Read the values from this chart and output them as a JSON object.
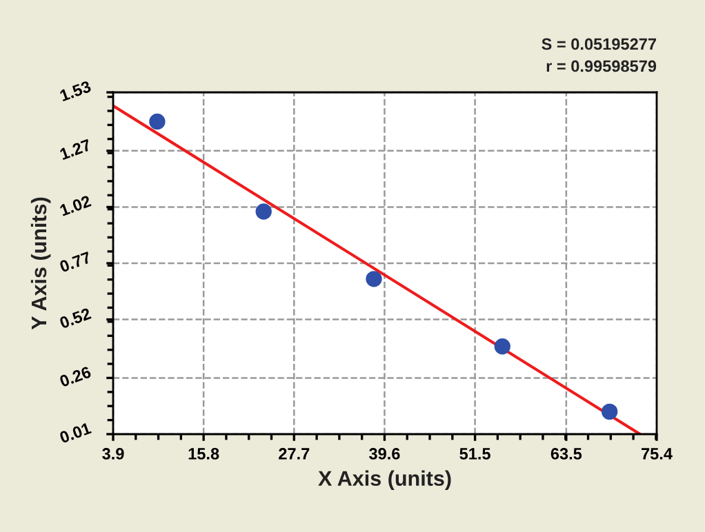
{
  "chart_data": {
    "type": "scatter",
    "xlabel": "X Axis (units)",
    "ylabel": "Y Axis (units)",
    "annotations": [
      "S = 0.05195277",
      "r = 0.99598579"
    ],
    "series": [
      {
        "color": "#2f4fa8",
        "marker": "circle",
        "x": [
          9.7,
          23.7,
          38.2,
          55.1,
          69.2
        ],
        "values": [
          1.4,
          1.0,
          0.7,
          0.4,
          0.11
        ]
      },
      {
        "type": "line",
        "color": "#ee1c1c",
        "line_style": "solid",
        "x": [
          3.9,
          73.2
        ],
        "values": [
          1.47,
          0.01
        ]
      }
    ],
    "xlim": [
      3.9,
      75.4
    ],
    "xticks": [
      3.9,
      15.8,
      27.7,
      39.6,
      51.5,
      63.5,
      75.4
    ],
    "ylim": [
      0.01,
      1.53
    ],
    "yticks": [
      0.01,
      0.26,
      0.52,
      0.77,
      1.02,
      1.27,
      1.53
    ],
    "grid": true
  }
}
